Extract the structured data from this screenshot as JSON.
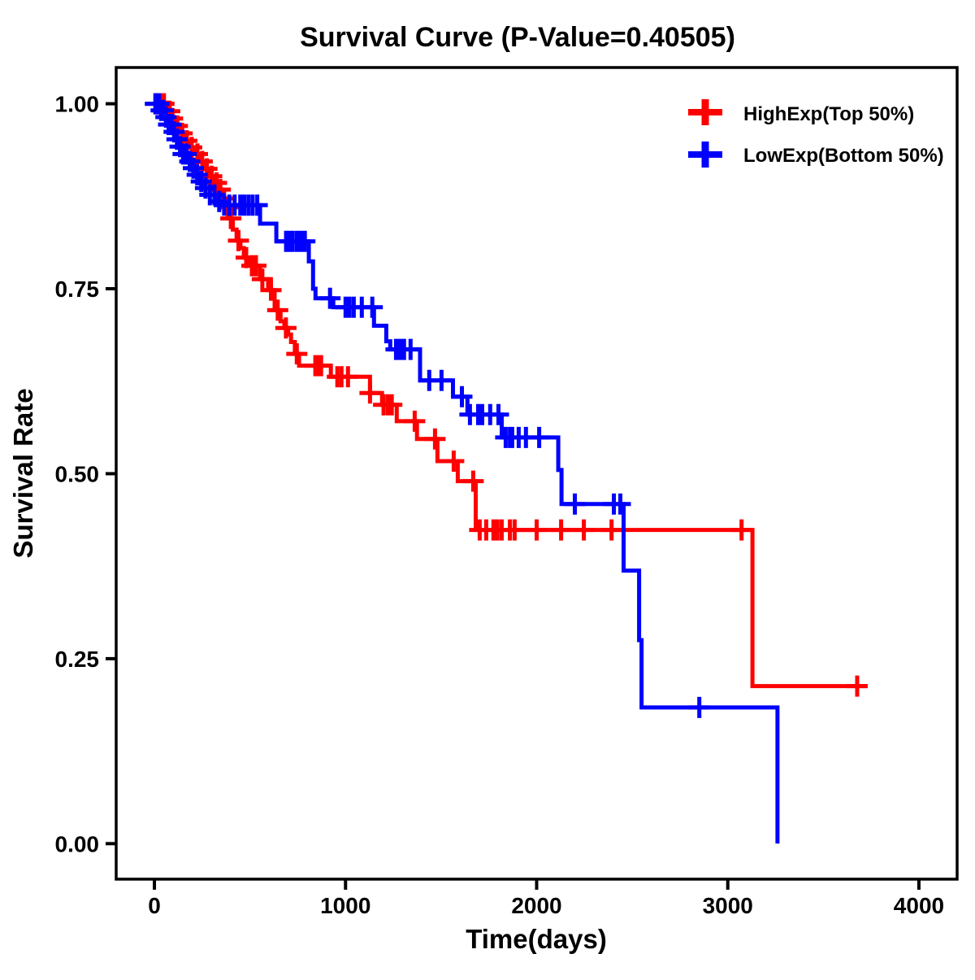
{
  "page": {
    "background": "#ffffff",
    "text_color": "#000000"
  },
  "chart_data": {
    "type": "line",
    "variant": "kaplan_meier_survival_step",
    "title": "Survival Curve (P-Value=0.40505)",
    "p_value": "0.40505",
    "xlabel": "Time(days)",
    "ylabel": "Survival Rate",
    "xlim": [
      -200,
      4200
    ],
    "ylim": [
      -0.048,
      1.049
    ],
    "grid": false,
    "legend_position": "top-right-inside",
    "axis_color": "#000000",
    "x_ticks": {
      "values": [
        0,
        1000,
        2000,
        3000,
        4000
      ],
      "labels": [
        "0",
        "1000",
        "2000",
        "3000",
        "4000"
      ]
    },
    "y_ticks": {
      "values": [
        0,
        0.25,
        0.5,
        0.75,
        1.0
      ],
      "labels": [
        "0.00",
        "0.25",
        "0.50",
        "0.75",
        "1.00"
      ]
    },
    "series": [
      {
        "name": "HighExp(Top 50%)",
        "color": "#ff0000",
        "steps": [
          [
            0,
            1.0
          ],
          [
            55,
            0.99
          ],
          [
            85,
            0.98
          ],
          [
            110,
            0.97
          ],
          [
            135,
            0.96
          ],
          [
            160,
            0.95
          ],
          [
            185,
            0.941
          ],
          [
            210,
            0.932
          ],
          [
            235,
            0.922
          ],
          [
            260,
            0.912
          ],
          [
            285,
            0.902
          ],
          [
            310,
            0.893
          ],
          [
            335,
            0.884
          ],
          [
            355,
            0.872
          ],
          [
            375,
            0.86
          ],
          [
            391,
            0.845
          ],
          [
            410,
            0.83
          ],
          [
            430,
            0.815
          ],
          [
            450,
            0.805
          ],
          [
            468,
            0.792
          ],
          [
            489,
            0.781
          ],
          [
            553,
            0.763
          ],
          [
            595,
            0.748
          ],
          [
            629,
            0.721
          ],
          [
            660,
            0.706
          ],
          [
            680,
            0.697
          ],
          [
            700,
            0.688
          ],
          [
            715,
            0.678
          ],
          [
            735,
            0.662
          ],
          [
            757,
            0.646
          ],
          [
            923,
            0.631
          ],
          [
            1128,
            0.609
          ],
          [
            1191,
            0.593
          ],
          [
            1268,
            0.571
          ],
          [
            1374,
            0.547
          ],
          [
            1481,
            0.517
          ],
          [
            1587,
            0.49
          ],
          [
            1681,
            0.424
          ],
          [
            3129,
            0.213
          ]
        ],
        "end_time": 3730,
        "censor_times": [
          8,
          20,
          35,
          50,
          65,
          80,
          95,
          120,
          145,
          170,
          195,
          225,
          250,
          275,
          300,
          325,
          345,
          365,
          385,
          400,
          440,
          480,
          510,
          531,
          565,
          610,
          645,
          688,
          745,
          842,
          860,
          872,
          957,
          979,
          1013,
          1128,
          1199,
          1221,
          1242,
          1362,
          1468,
          1566,
          1668,
          1702,
          1736,
          1774,
          1795,
          1817,
          1860,
          1885,
          2000,
          2128,
          2247,
          2392,
          3072,
          3677
        ]
      },
      {
        "name": "LowExp(Bottom 50%)",
        "color": "#0000ff",
        "steps": [
          [
            0,
            1.0
          ],
          [
            30,
            0.991
          ],
          [
            50,
            0.982
          ],
          [
            70,
            0.972
          ],
          [
            90,
            0.962
          ],
          [
            110,
            0.952
          ],
          [
            130,
            0.942
          ],
          [
            150,
            0.932
          ],
          [
            170,
            0.922
          ],
          [
            190,
            0.913
          ],
          [
            215,
            0.904
          ],
          [
            240,
            0.895
          ],
          [
            265,
            0.886
          ],
          [
            290,
            0.877
          ],
          [
            320,
            0.868
          ],
          [
            340,
            0.863
          ],
          [
            553,
            0.838
          ],
          [
            638,
            0.814
          ],
          [
            808,
            0.787
          ],
          [
            830,
            0.75
          ],
          [
            843,
            0.737
          ],
          [
            936,
            0.725
          ],
          [
            1149,
            0.7
          ],
          [
            1213,
            0.679
          ],
          [
            1234,
            0.668
          ],
          [
            1390,
            0.626
          ],
          [
            1562,
            0.604
          ],
          [
            1638,
            0.58
          ],
          [
            1817,
            0.549
          ],
          [
            2113,
            0.505
          ],
          [
            2130,
            0.459
          ],
          [
            2455,
            0.369
          ],
          [
            2536,
            0.275
          ],
          [
            2549,
            0.184
          ],
          [
            3260,
            0.0
          ]
        ],
        "end_time": 3260,
        "censor_times": [
          5,
          14,
          24,
          35,
          47,
          60,
          74,
          88,
          103,
          118,
          134,
          150,
          167,
          185,
          204,
          224,
          245,
          267,
          290,
          314,
          339,
          365,
          392,
          420,
          449,
          470,
          492,
          514,
          538,
          689,
          702,
          723,
          745,
          766,
          787,
          919,
          1000,
          1021,
          1043,
          1085,
          1140,
          1264,
          1285,
          1306,
          1340,
          1438,
          1502,
          1609,
          1651,
          1694,
          1715,
          1757,
          1800,
          1838,
          1860,
          1872,
          1906,
          1944,
          2013,
          2200,
          2404,
          2438,
          2851
        ]
      }
    ]
  }
}
